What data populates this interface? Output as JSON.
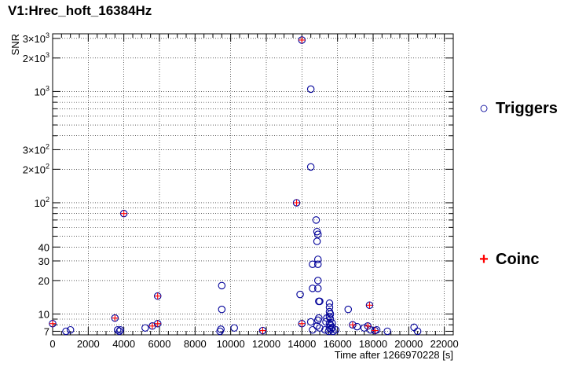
{
  "chart_data": {
    "type": "scatter",
    "title": "V1:Hrec_hoft_16384Hz",
    "xlabel": "Time after 1266970228 [s]",
    "ylabel": "SNR",
    "xlim": [
      0,
      22500
    ],
    "ylim": [
      6.5,
      3300
    ],
    "yscale": "log",
    "grid": true,
    "x_ticks": [
      0,
      2000,
      4000,
      6000,
      8000,
      10000,
      12000,
      14000,
      16000,
      18000,
      20000,
      22000
    ],
    "x_tick_labels": [
      "0",
      "2000",
      "4000",
      "6000",
      "8000",
      "10000",
      "12000",
      "14000",
      "16000",
      "18000",
      "20000",
      "22000"
    ],
    "y_ticks": [
      {
        "value": 7,
        "label": "7"
      },
      {
        "value": 10,
        "label": "10"
      },
      {
        "value": 20,
        "label": "20"
      },
      {
        "value": 30,
        "label": "30"
      },
      {
        "value": 40,
        "label": "40"
      },
      {
        "value": 100,
        "label": "10",
        "exp": "2"
      },
      {
        "value": 200,
        "label": "2×10",
        "exp": "2"
      },
      {
        "value": 300,
        "label": "3×10",
        "exp": "2"
      },
      {
        "value": 1000,
        "label": "10",
        "exp": "3"
      },
      {
        "value": 2000,
        "label": "2×10",
        "exp": "3"
      },
      {
        "value": 3000,
        "label": "3×10",
        "exp": "3"
      }
    ],
    "y_minor_ticks": [
      8,
      9,
      50,
      60,
      70,
      80,
      90,
      400,
      500,
      600,
      700,
      800,
      900
    ],
    "legend": {
      "position": "right",
      "entries": [
        {
          "name": "Triggers",
          "symbol": "○",
          "color": "#000099"
        },
        {
          "name": "Coinc",
          "symbol": "+",
          "color": "#ff0000"
        }
      ]
    },
    "series": [
      {
        "name": "Triggers",
        "marker": "open-circle",
        "color": "#000099",
        "points": [
          [
            0,
            8.2
          ],
          [
            750,
            7.0
          ],
          [
            1000,
            7.2
          ],
          [
            3500,
            9.2
          ],
          [
            3650,
            7.2
          ],
          [
            3750,
            7.0
          ],
          [
            3800,
            7.2
          ],
          [
            4000,
            80
          ],
          [
            5200,
            7.5
          ],
          [
            5600,
            7.8
          ],
          [
            5900,
            8.2
          ],
          [
            5900,
            14.5
          ],
          [
            9400,
            7.0
          ],
          [
            9450,
            7.3
          ],
          [
            9500,
            11
          ],
          [
            9500,
            18
          ],
          [
            10200,
            7.5
          ],
          [
            11800,
            7.1
          ],
          [
            13700,
            100
          ],
          [
            13900,
            15
          ],
          [
            14000,
            8.2
          ],
          [
            14000,
            2900
          ],
          [
            14500,
            210
          ],
          [
            14500,
            1050
          ],
          [
            14500,
            8.5
          ],
          [
            14600,
            28
          ],
          [
            14600,
            7.2
          ],
          [
            14600,
            17
          ],
          [
            14800,
            70
          ],
          [
            14850,
            55
          ],
          [
            14900,
            52
          ],
          [
            14850,
            45
          ],
          [
            14900,
            31
          ],
          [
            14900,
            28
          ],
          [
            14900,
            20
          ],
          [
            14900,
            17
          ],
          [
            14950,
            13
          ],
          [
            14950,
            9.2
          ],
          [
            14900,
            8.8
          ],
          [
            14850,
            7.8
          ],
          [
            15000,
            7.5
          ],
          [
            15000,
            13
          ],
          [
            15300,
            7.2
          ],
          [
            15350,
            8.5
          ],
          [
            15400,
            9.2
          ],
          [
            15500,
            7.0
          ],
          [
            15550,
            7.5
          ],
          [
            15550,
            8.2
          ],
          [
            15550,
            9.5
          ],
          [
            15550,
            10.5
          ],
          [
            15550,
            11.5
          ],
          [
            15550,
            12.5
          ],
          [
            15600,
            8.0
          ],
          [
            15600,
            9.0
          ],
          [
            15600,
            10.0
          ],
          [
            15650,
            7.3
          ],
          [
            15700,
            7.6
          ],
          [
            15700,
            8.3
          ],
          [
            15750,
            7.0
          ],
          [
            15900,
            7.2
          ],
          [
            16600,
            11
          ],
          [
            16850,
            8.0
          ],
          [
            17100,
            7.7
          ],
          [
            17500,
            7.5
          ],
          [
            17700,
            7.8
          ],
          [
            17800,
            12
          ],
          [
            17850,
            7.2
          ],
          [
            18100,
            7.1
          ],
          [
            18200,
            7.2
          ],
          [
            18800,
            7.0
          ],
          [
            20300,
            7.6
          ],
          [
            20500,
            7.0
          ]
        ]
      },
      {
        "name": "Coinc",
        "marker": "plus",
        "color": "#ff0000",
        "points": [
          [
            0,
            8.2
          ],
          [
            3500,
            9.2
          ],
          [
            4000,
            80
          ],
          [
            5600,
            7.8
          ],
          [
            5900,
            8.2
          ],
          [
            5900,
            14.5
          ],
          [
            11800,
            7.1
          ],
          [
            13700,
            100
          ],
          [
            14000,
            8.2
          ],
          [
            14000,
            2900
          ],
          [
            16850,
            8.0
          ],
          [
            17700,
            7.8
          ],
          [
            17800,
            12
          ],
          [
            18100,
            7.1
          ]
        ]
      }
    ]
  }
}
